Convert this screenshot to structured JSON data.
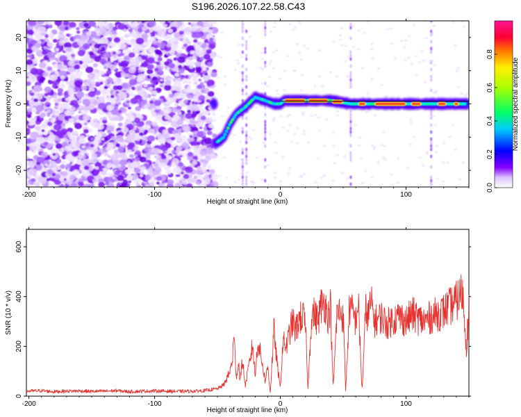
{
  "page_title": "S196.2026.107.22.58.C43",
  "colors": {
    "snr_line": "#e8302c",
    "colormap_stops": [
      "#ffffff",
      "#d9b8ff",
      "#8800ff",
      "#0000ff",
      "#00ccff",
      "#00ff66",
      "#aaff00",
      "#ffee00",
      "#ff7700",
      "#ff0033",
      "#ff1493"
    ]
  },
  "chart_data": [
    {
      "type": "heatmap",
      "title": "S196.2026.107.22.58.C43",
      "xlabel": "Height of straight line (km)",
      "ylabel": "Frequency (Hz)",
      "xlim": [
        -202,
        150
      ],
      "ylim": [
        -25,
        25
      ],
      "xticks": [
        -200,
        -100,
        0,
        100
      ],
      "yticks": [
        -20,
        -10,
        0,
        10,
        20
      ],
      "colorbar": {
        "label": "Normalized spectral amplitude",
        "range": [
          0,
          1
        ],
        "ticks": [
          "0.0",
          "0.2",
          "0.4",
          "0.6",
          "0.8"
        ]
      },
      "features": {
        "noise_region_km": [
          -202,
          -52
        ],
        "trace_points": [
          [
            -52,
            -12
          ],
          [
            -45,
            -10
          ],
          [
            -40,
            -6
          ],
          [
            -35,
            -3
          ],
          [
            -28,
            -1
          ],
          [
            -20,
            2
          ],
          [
            -12,
            1
          ],
          [
            -5,
            0
          ],
          [
            0,
            0
          ],
          [
            3,
            1
          ],
          [
            10,
            1
          ],
          [
            20,
            1
          ],
          [
            40,
            1
          ],
          [
            56,
            0
          ],
          [
            80,
            0
          ],
          [
            100,
            0
          ],
          [
            120,
            0
          ],
          [
            150,
            0
          ]
        ]
      }
    },
    {
      "type": "line",
      "xlabel": "Height of straight line (km)",
      "ylabel": "SNR (10 * v/v)",
      "xlim": [
        -202,
        150
      ],
      "ylim": [
        0,
        670
      ],
      "xticks": [
        -200,
        -100,
        0,
        100
      ],
      "yticks": [
        0,
        200,
        400,
        600
      ],
      "series": [
        {
          "name": "SNR",
          "x": [
            -202,
            -190,
            -180,
            -170,
            -160,
            -150,
            -140,
            -130,
            -120,
            -110,
            -100,
            -90,
            -80,
            -70,
            -60,
            -50,
            -45,
            -40,
            -38,
            -37,
            -35,
            -33,
            -32,
            -30,
            -28,
            -25,
            -22,
            -20,
            -18,
            -15,
            -12,
            -10,
            -8,
            -5,
            -3,
            0,
            2,
            5,
            8,
            10,
            12,
            15,
            18,
            20,
            22,
            25,
            28,
            30,
            32,
            35,
            38,
            40,
            42,
            45,
            48,
            50,
            52,
            55,
            58,
            60,
            62,
            65,
            68,
            70,
            72,
            75,
            78,
            80,
            85,
            90,
            95,
            100,
            105,
            110,
            115,
            120,
            125,
            130,
            135,
            140,
            145,
            148,
            150
          ],
          "y": [
            20,
            22,
            18,
            20,
            21,
            19,
            20,
            22,
            18,
            20,
            21,
            20,
            19,
            20,
            22,
            30,
            45,
            100,
            150,
            240,
            80,
            130,
            60,
            150,
            40,
            120,
            210,
            80,
            220,
            150,
            60,
            120,
            15,
            270,
            150,
            30,
            220,
            200,
            270,
            300,
            260,
            310,
            320,
            280,
            30,
            340,
            320,
            300,
            360,
            380,
            320,
            360,
            30,
            330,
            340,
            320,
            20,
            360,
            330,
            300,
            380,
            20,
            350,
            320,
            380,
            300,
            310,
            320,
            290,
            310,
            320,
            300,
            330,
            310,
            300,
            320,
            330,
            340,
            360,
            380,
            420,
            200,
            350
          ]
        }
      ]
    }
  ]
}
